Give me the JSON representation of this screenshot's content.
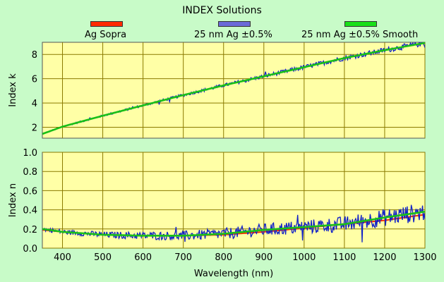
{
  "title": "INDEX Solutions",
  "colors": {
    "background": "#c8fbc8",
    "plot_background": "#ffffa6",
    "grid": "#8a7a00",
    "ag_sopra": "#ff2a00",
    "measured": "#1020c8",
    "smooth": "#18c018"
  },
  "legend": [
    {
      "label": "Ag Sopra",
      "color": "#ff2a00"
    },
    {
      "label": "25 nm Ag ±0.5%",
      "color": "#6a6ad8"
    },
    {
      "label": "25 nm Ag ±0.5% Smooth",
      "color": "#18e018"
    }
  ],
  "chart_data": [
    {
      "type": "line",
      "ylabel": "Index k",
      "xlim": [
        350,
        1300
      ],
      "ylim": [
        1.1,
        9.0
      ],
      "yticks": [
        2,
        4,
        6,
        8
      ],
      "xticks": [
        400,
        500,
        600,
        700,
        800,
        900,
        1000,
        1100,
        1200,
        1300
      ],
      "grid": true,
      "series": [
        {
          "name": "Ag Sopra",
          "x": [
            350,
            400,
            500,
            600,
            700,
            800,
            900,
            1000,
            1100,
            1200,
            1300
          ],
          "y": [
            1.45,
            2.05,
            2.95,
            3.8,
            4.65,
            5.45,
            6.2,
            6.95,
            7.7,
            8.35,
            8.95
          ]
        },
        {
          "name": "25 nm Ag ±0.5%",
          "x": [
            350,
            400,
            500,
            600,
            700,
            800,
            900,
            1000,
            1100,
            1200,
            1300
          ],
          "y": [
            1.45,
            2.05,
            2.95,
            3.8,
            4.65,
            5.45,
            6.2,
            6.95,
            7.7,
            8.35,
            8.95
          ],
          "noise": 0.12
        },
        {
          "name": "25 nm Ag ±0.5% Smooth",
          "x": [
            350,
            400,
            500,
            600,
            700,
            800,
            900,
            1000,
            1100,
            1200,
            1300
          ],
          "y": [
            1.45,
            2.05,
            2.95,
            3.8,
            4.65,
            5.45,
            6.2,
            6.95,
            7.7,
            8.35,
            8.95
          ]
        }
      ]
    },
    {
      "type": "line",
      "xlabel": "Wavelength (nm)",
      "ylabel": "Index n",
      "xlim": [
        350,
        1300
      ],
      "ylim": [
        0.0,
        1.0
      ],
      "yticks": [
        "0.0",
        "0.2",
        "0.4",
        "0.6",
        "0.8",
        "1.0"
      ],
      "xticks": [
        400,
        500,
        600,
        700,
        800,
        900,
        1000,
        1100,
        1200,
        1300
      ],
      "grid": true,
      "series": [
        {
          "name": "Ag Sopra",
          "x": [
            350,
            400,
            500,
            600,
            700,
            800,
            900,
            1000,
            1100,
            1200,
            1300
          ],
          "y": [
            0.19,
            0.17,
            0.14,
            0.13,
            0.13,
            0.14,
            0.17,
            0.21,
            0.25,
            0.29,
            0.35
          ]
        },
        {
          "name": "25 nm Ag ±0.5%",
          "x": [
            350,
            400,
            500,
            600,
            700,
            800,
            900,
            1000,
            1100,
            1200,
            1300
          ],
          "y": [
            0.2,
            0.17,
            0.14,
            0.13,
            0.13,
            0.15,
            0.19,
            0.22,
            0.25,
            0.32,
            0.38
          ],
          "noise": 0.05
        },
        {
          "name": "25 nm Ag ±0.5% Smooth",
          "x": [
            350,
            400,
            500,
            600,
            700,
            800,
            900,
            1000,
            1100,
            1200,
            1300
          ],
          "y": [
            0.2,
            0.17,
            0.14,
            0.13,
            0.13,
            0.15,
            0.19,
            0.22,
            0.25,
            0.32,
            0.38
          ]
        }
      ]
    }
  ]
}
